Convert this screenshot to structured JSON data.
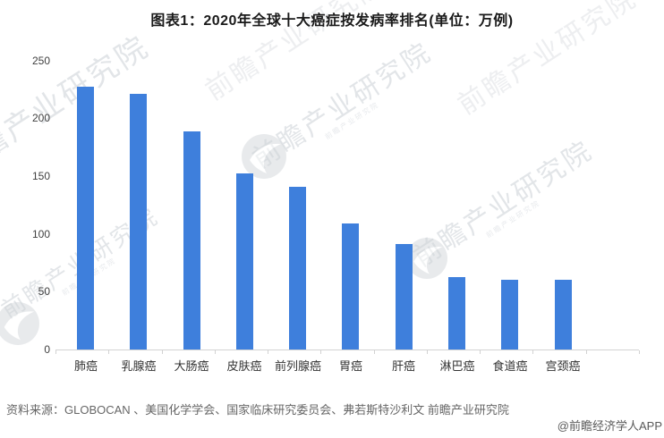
{
  "title": "图表1：2020年全球十大癌症按发病率排名(单位：万例)",
  "chart_data": {
    "type": "bar",
    "title": "图表1：2020年全球十大癌症按发病率排名(单位：万例)",
    "unit": "万例",
    "categories": [
      "肺癌",
      "乳腺癌",
      "大肠癌",
      "皮肤癌",
      "前列腺癌",
      "胃癌",
      "肝癌",
      "淋巴癌",
      "食道癌",
      "宫颈癌"
    ],
    "values": [
      227,
      221,
      189,
      152,
      141,
      109,
      91,
      63,
      60,
      60
    ],
    "xlabel": "",
    "ylabel": "",
    "ylim": [
      0,
      250
    ],
    "yticks": [
      0,
      50,
      100,
      150,
      200,
      250
    ],
    "grid": false,
    "legend_position": "none",
    "bar_color": "#3E7FDC"
  },
  "footer": {
    "source": "资料来源：GLOBOCAN 、美国化学学会、国家临床研究委员会、弗若斯特沙利文 前瞻产业研究院",
    "credit": "@前瞻经济学人APP"
  },
  "watermark": {
    "text": "前瞻产业研究院",
    "logo_name": "qianzhan-logo"
  },
  "colors": {
    "bar": "#3E7FDC",
    "title_text": "#1a1a1a",
    "axis_text": "#404040",
    "category_text": "#333333",
    "source_text": "#666666",
    "axis_line": "#d2d2d2",
    "watermark": "#ccd1d7"
  }
}
